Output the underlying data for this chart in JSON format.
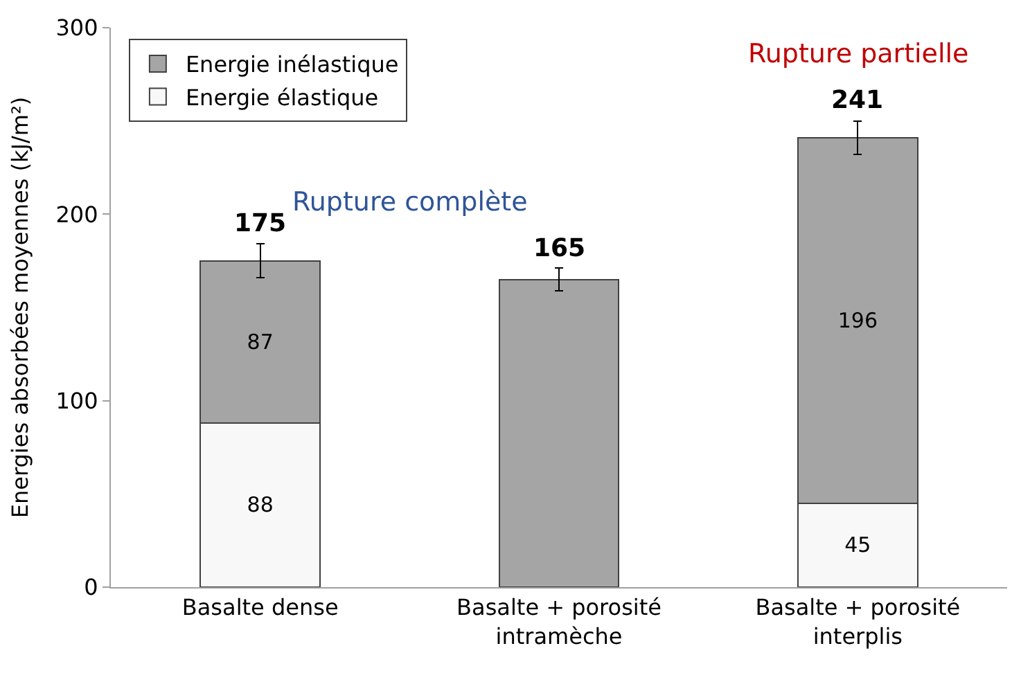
{
  "chart_data": {
    "type": "bar",
    "stacked": true,
    "ylabel": "Energies absorbées moyennes (kJ/m²)",
    "categories": [
      "Basalte dense",
      "Basalte + porosité intramèche",
      "Basalte + porosité interplis"
    ],
    "series": [
      {
        "name": "Energie élastique",
        "color": "#f8f8f8",
        "values": [
          88,
          null,
          45
        ],
        "value_labels": [
          "88",
          null,
          "45"
        ]
      },
      {
        "name": "Energie inélastique",
        "color": "#a5a5a5",
        "values": [
          87,
          165,
          196
        ],
        "value_labels": [
          "87",
          null,
          "196"
        ],
        "errors": [
          9,
          6,
          9
        ]
      }
    ],
    "totals": [
      "175",
      "165",
      "241"
    ],
    "annotations": [
      "Rupture complète",
      "Rupture partielle"
    ],
    "ylim": [
      0,
      300
    ],
    "yticks": [
      0,
      100,
      200,
      300
    ],
    "grid": false,
    "legend": "top left"
  }
}
